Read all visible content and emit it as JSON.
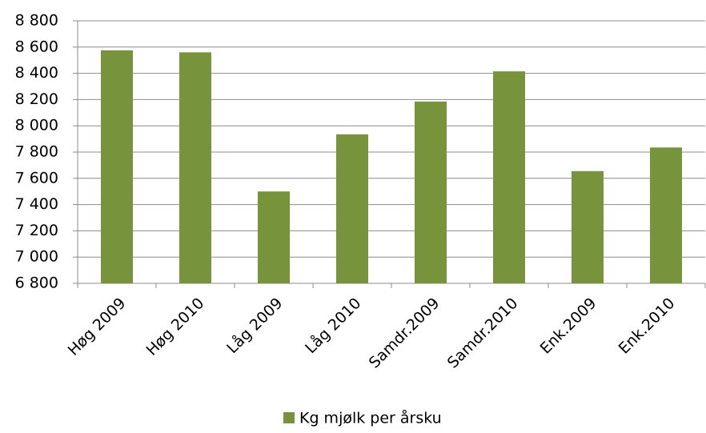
{
  "chart_data": {
    "type": "bar",
    "categories": [
      "Høg 2009",
      "Høg 2010",
      "Låg 2009",
      "Låg 2010",
      "Samdr.2009",
      "Samdr.2010",
      "Enk.2009",
      "Enk.2010"
    ],
    "series": [
      {
        "name": "Kg mjølk per årsku",
        "color": "#77933c",
        "values": [
          8575,
          8560,
          7500,
          7935,
          8185,
          8415,
          7655,
          7835
        ]
      }
    ],
    "ylim": [
      6800,
      8800
    ],
    "yticks": [
      {
        "value": 6800,
        "label": "6 800"
      },
      {
        "value": 7000,
        "label": "7 000"
      },
      {
        "value": 7200,
        "label": "7 200"
      },
      {
        "value": 7400,
        "label": "7 400"
      },
      {
        "value": 7600,
        "label": "7 600"
      },
      {
        "value": 7800,
        "label": "7 800"
      },
      {
        "value": 8000,
        "label": "8 000"
      },
      {
        "value": 8200,
        "label": "8 200"
      },
      {
        "value": 8400,
        "label": "8 400"
      },
      {
        "value": 8600,
        "label": "8 600"
      },
      {
        "value": 8800,
        "label": "8 800"
      }
    ],
    "grid": true,
    "legend": "bottom"
  }
}
